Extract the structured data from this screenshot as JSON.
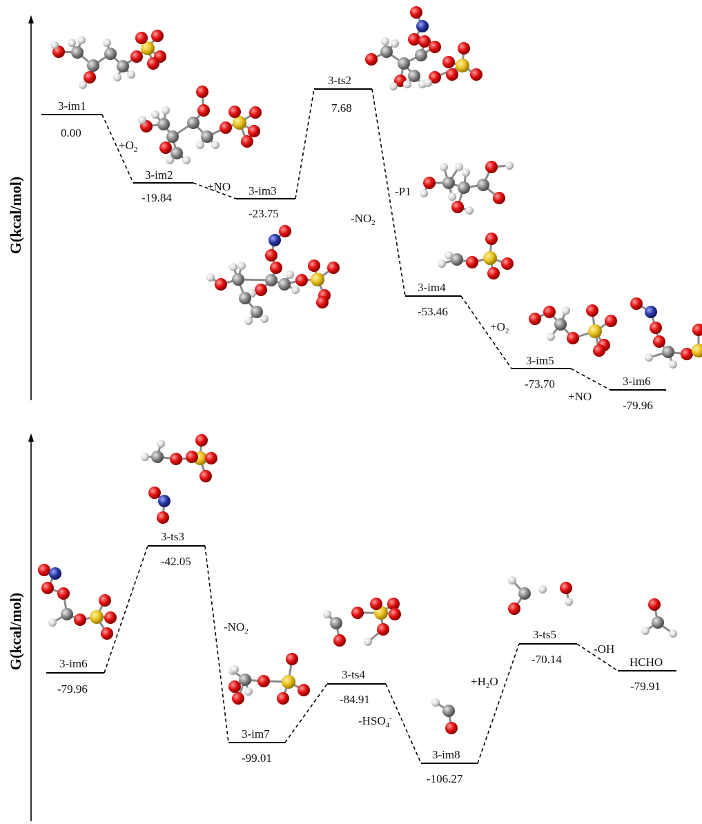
{
  "panels": [
    {
      "axis_label": "G(kcal/mol)",
      "levels": [
        {
          "name": "3-im1",
          "energy": "0.00"
        },
        {
          "name": "3-im2",
          "energy": "-19.84"
        },
        {
          "name": "3-im3",
          "energy": "-23.75"
        },
        {
          "name": "3-ts2",
          "energy": "7.68"
        },
        {
          "name": "3-im4",
          "energy": "-53.46"
        },
        {
          "name": "3-im5",
          "energy": "-73.70"
        },
        {
          "name": "3-im6",
          "energy": "-79.96"
        }
      ],
      "step_labels": [
        "+O",
        "+NO",
        "-NO",
        "-P1",
        "+O",
        "+NO"
      ]
    },
    {
      "axis_label": "G(kcal/mol)",
      "levels": [
        {
          "name": "3-im6",
          "energy": "-79.96"
        },
        {
          "name": "3-ts3",
          "energy": "-42.05"
        },
        {
          "name": "3-im7",
          "energy": "-99.01"
        },
        {
          "name": "3-ts4",
          "energy": "-84.91"
        },
        {
          "name": "3-im8",
          "energy": "-106.27"
        },
        {
          "name": "3-ts5",
          "energy": "-70.14"
        },
        {
          "name": "HCHO",
          "energy": "-79.91"
        }
      ],
      "step_labels": [
        "-NO",
        "-HSO",
        "+H",
        "O",
        "-OH"
      ],
      "subscripts": {
        "two": "2",
        "four": "4"
      },
      "superscripts": {
        "minus": "-"
      }
    }
  ],
  "colors": {
    "oxygen": "#e01010",
    "carbon": "#8c8c8c",
    "hydrogen": "#e4e4e4",
    "sulfur": "#e8c020",
    "nitrogen": "#2b3aa0"
  }
}
